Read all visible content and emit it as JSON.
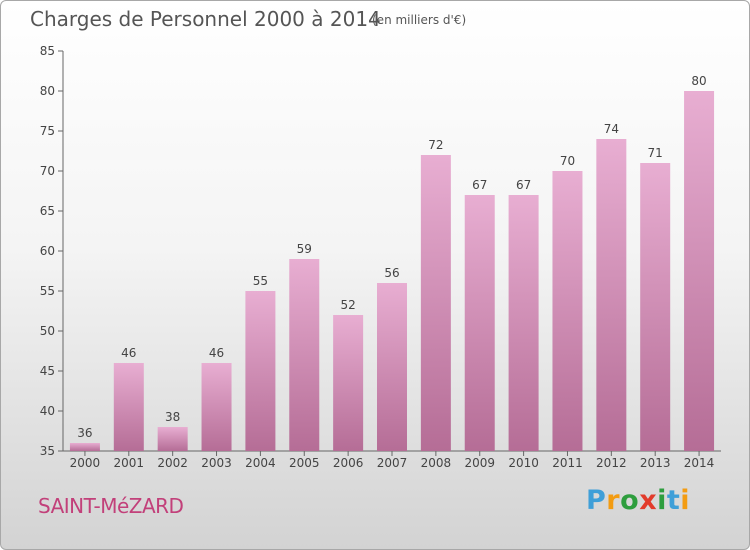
{
  "header": {
    "title": "Charges de Personnel 2000 à 2014",
    "subtitle": "(en milliers d'€)"
  },
  "footer": {
    "town": "SAINT-MéZARD",
    "brand": {
      "letters": [
        "P",
        "r",
        "o",
        "x",
        "i",
        "t",
        "i"
      ],
      "colors": [
        "#3f9fd8",
        "#f39c12",
        "#2e9e3e",
        "#e23b2b",
        "#2e9e3e",
        "#3f9fd8",
        "#f39c12"
      ]
    }
  },
  "chart_data": {
    "type": "bar",
    "title": "Charges de Personnel 2000 à 2014",
    "subtitle": "(en milliers d'€)",
    "categories": [
      "2000",
      "2001",
      "2002",
      "2003",
      "2004",
      "2005",
      "2006",
      "2007",
      "2008",
      "2009",
      "2010",
      "2011",
      "2012",
      "2013",
      "2014"
    ],
    "values": [
      36,
      46,
      38,
      46,
      55,
      59,
      52,
      56,
      72,
      67,
      67,
      70,
      74,
      71,
      80
    ],
    "ylim": [
      35,
      85
    ],
    "yticks": [
      35,
      40,
      45,
      50,
      55,
      60,
      65,
      70,
      75,
      80,
      85
    ],
    "grid": false,
    "colors": {
      "bar_top": "#e8aed2",
      "bar_bottom": "#b56d96",
      "axis": "#666666",
      "text": "#444444"
    }
  }
}
